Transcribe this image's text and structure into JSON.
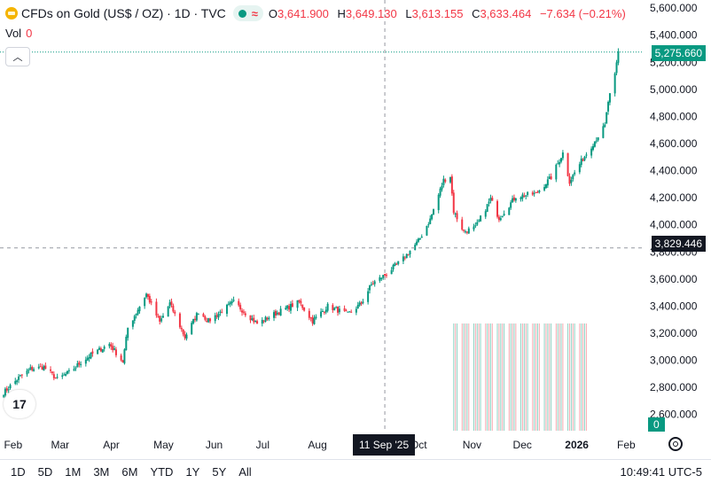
{
  "header": {
    "symbol_title": "CFDs on Gold (US$ / OZ) · 1D · TVC",
    "ohlc": {
      "o_label": "O",
      "o": "3,641.900",
      "h_label": "H",
      "h": "3,649.130",
      "l_label": "L",
      "l": "3,613.155",
      "c_label": "C",
      "c": "3,633.464",
      "change": "−7.634 (−0.21%)"
    },
    "vol_label": "Vol",
    "vol_value": "0"
  },
  "price_tags": {
    "current": "5,275.660",
    "crosshair": "3,829.446",
    "volume": "0",
    "crosshair_date": "11 Sep '25"
  },
  "bottom_bar": {
    "ranges": [
      "1D",
      "5D",
      "1M",
      "3M",
      "6M",
      "YTD",
      "1Y",
      "5Y",
      "All"
    ],
    "clock": "10:49:41 UTC-5"
  },
  "colors": {
    "up": "#089981",
    "down": "#f23645",
    "crosshair": "#9598a1",
    "grid": "#ffffff"
  },
  "chart_data": {
    "type": "candlestick",
    "y_axis": {
      "ylim": [
        2480,
        5660
      ],
      "ticks": [
        "5,600.000",
        "5,400.000",
        "5,200.000",
        "5,000.000",
        "4,800.000",
        "4,600.000",
        "4,400.000",
        "4,200.000",
        "4,000.000",
        "3,800.000",
        "3,600.000",
        "3,400.000",
        "3,200.000",
        "3,000.000",
        "2,800.000",
        "2,600.000"
      ],
      "tick_values": [
        5600,
        5400,
        5200,
        5000,
        4800,
        4600,
        4400,
        4200,
        4000,
        3800,
        3600,
        3400,
        3200,
        3000,
        2800,
        2600
      ]
    },
    "x_axis": {
      "labels": [
        "Feb",
        "Mar",
        "Apr",
        "May",
        "Jun",
        "Jul",
        "Aug",
        "Oct",
        "Nov",
        "Dec",
        "2026",
        "Feb"
      ],
      "label_dates": [
        "2025-02-01",
        "2025-03-01",
        "2025-04-01",
        "2025-05-01",
        "2025-06-01",
        "2025-07-01",
        "2025-08-01",
        "2025-10-01",
        "2025-11-01",
        "2025-12-01",
        "2026-01-01",
        "2026-02-01"
      ],
      "bold": [
        "2026"
      ]
    },
    "crosshair": {
      "date": "2025-09-11",
      "value": 3829.446
    },
    "current_price": 5275.66,
    "price_path": [
      [
        "2025-01-27",
        2760
      ],
      [
        "2025-02-05",
        2870
      ],
      [
        "2025-02-12",
        2935
      ],
      [
        "2025-02-20",
        2950
      ],
      [
        "2025-02-28",
        2860
      ],
      [
        "2025-03-07",
        2910
      ],
      [
        "2025-03-14",
        2985
      ],
      [
        "2025-03-20",
        3040
      ],
      [
        "2025-03-31",
        3120
      ],
      [
        "2025-04-08",
        2990
      ],
      [
        "2025-04-11",
        3240
      ],
      [
        "2025-04-22",
        3490
      ],
      [
        "2025-04-30",
        3280
      ],
      [
        "2025-05-06",
        3420
      ],
      [
        "2025-05-15",
        3170
      ],
      [
        "2025-05-23",
        3360
      ],
      [
        "2025-05-29",
        3290
      ],
      [
        "2025-06-13",
        3430
      ],
      [
        "2025-06-27",
        3270
      ],
      [
        "2025-07-07",
        3340
      ],
      [
        "2025-07-22",
        3430
      ],
      [
        "2025-07-30",
        3290
      ],
      [
        "2025-08-08",
        3400
      ],
      [
        "2025-08-20",
        3340
      ],
      [
        "2025-08-28",
        3420
      ],
      [
        "2025-09-03",
        3560
      ],
      [
        "2025-09-11",
        3630
      ],
      [
        "2025-09-22",
        3750
      ],
      [
        "2025-10-01",
        3880
      ],
      [
        "2025-10-08",
        4040
      ],
      [
        "2025-10-16",
        4330
      ],
      [
        "2025-10-20",
        4360
      ],
      [
        "2025-10-22",
        4100
      ],
      [
        "2025-10-28",
        3950
      ],
      [
        "2025-11-04",
        3980
      ],
      [
        "2025-11-13",
        4190
      ],
      [
        "2025-11-18",
        4050
      ],
      [
        "2025-11-28",
        4210
      ],
      [
        "2025-12-10",
        4230
      ],
      [
        "2025-12-19",
        4350
      ],
      [
        "2025-12-26",
        4530
      ],
      [
        "2025-12-30",
        4320
      ],
      [
        "2026-01-06",
        4470
      ],
      [
        "2026-01-14",
        4620
      ],
      [
        "2026-01-20",
        4730
      ],
      [
        "2026-01-22",
        4910
      ],
      [
        "2026-01-26",
        5100
      ],
      [
        "2026-01-28",
        5275
      ]
    ],
    "volume": {
      "value": 0,
      "bars_from": "2025-10-22",
      "bars_to": "2026-01-09"
    }
  }
}
